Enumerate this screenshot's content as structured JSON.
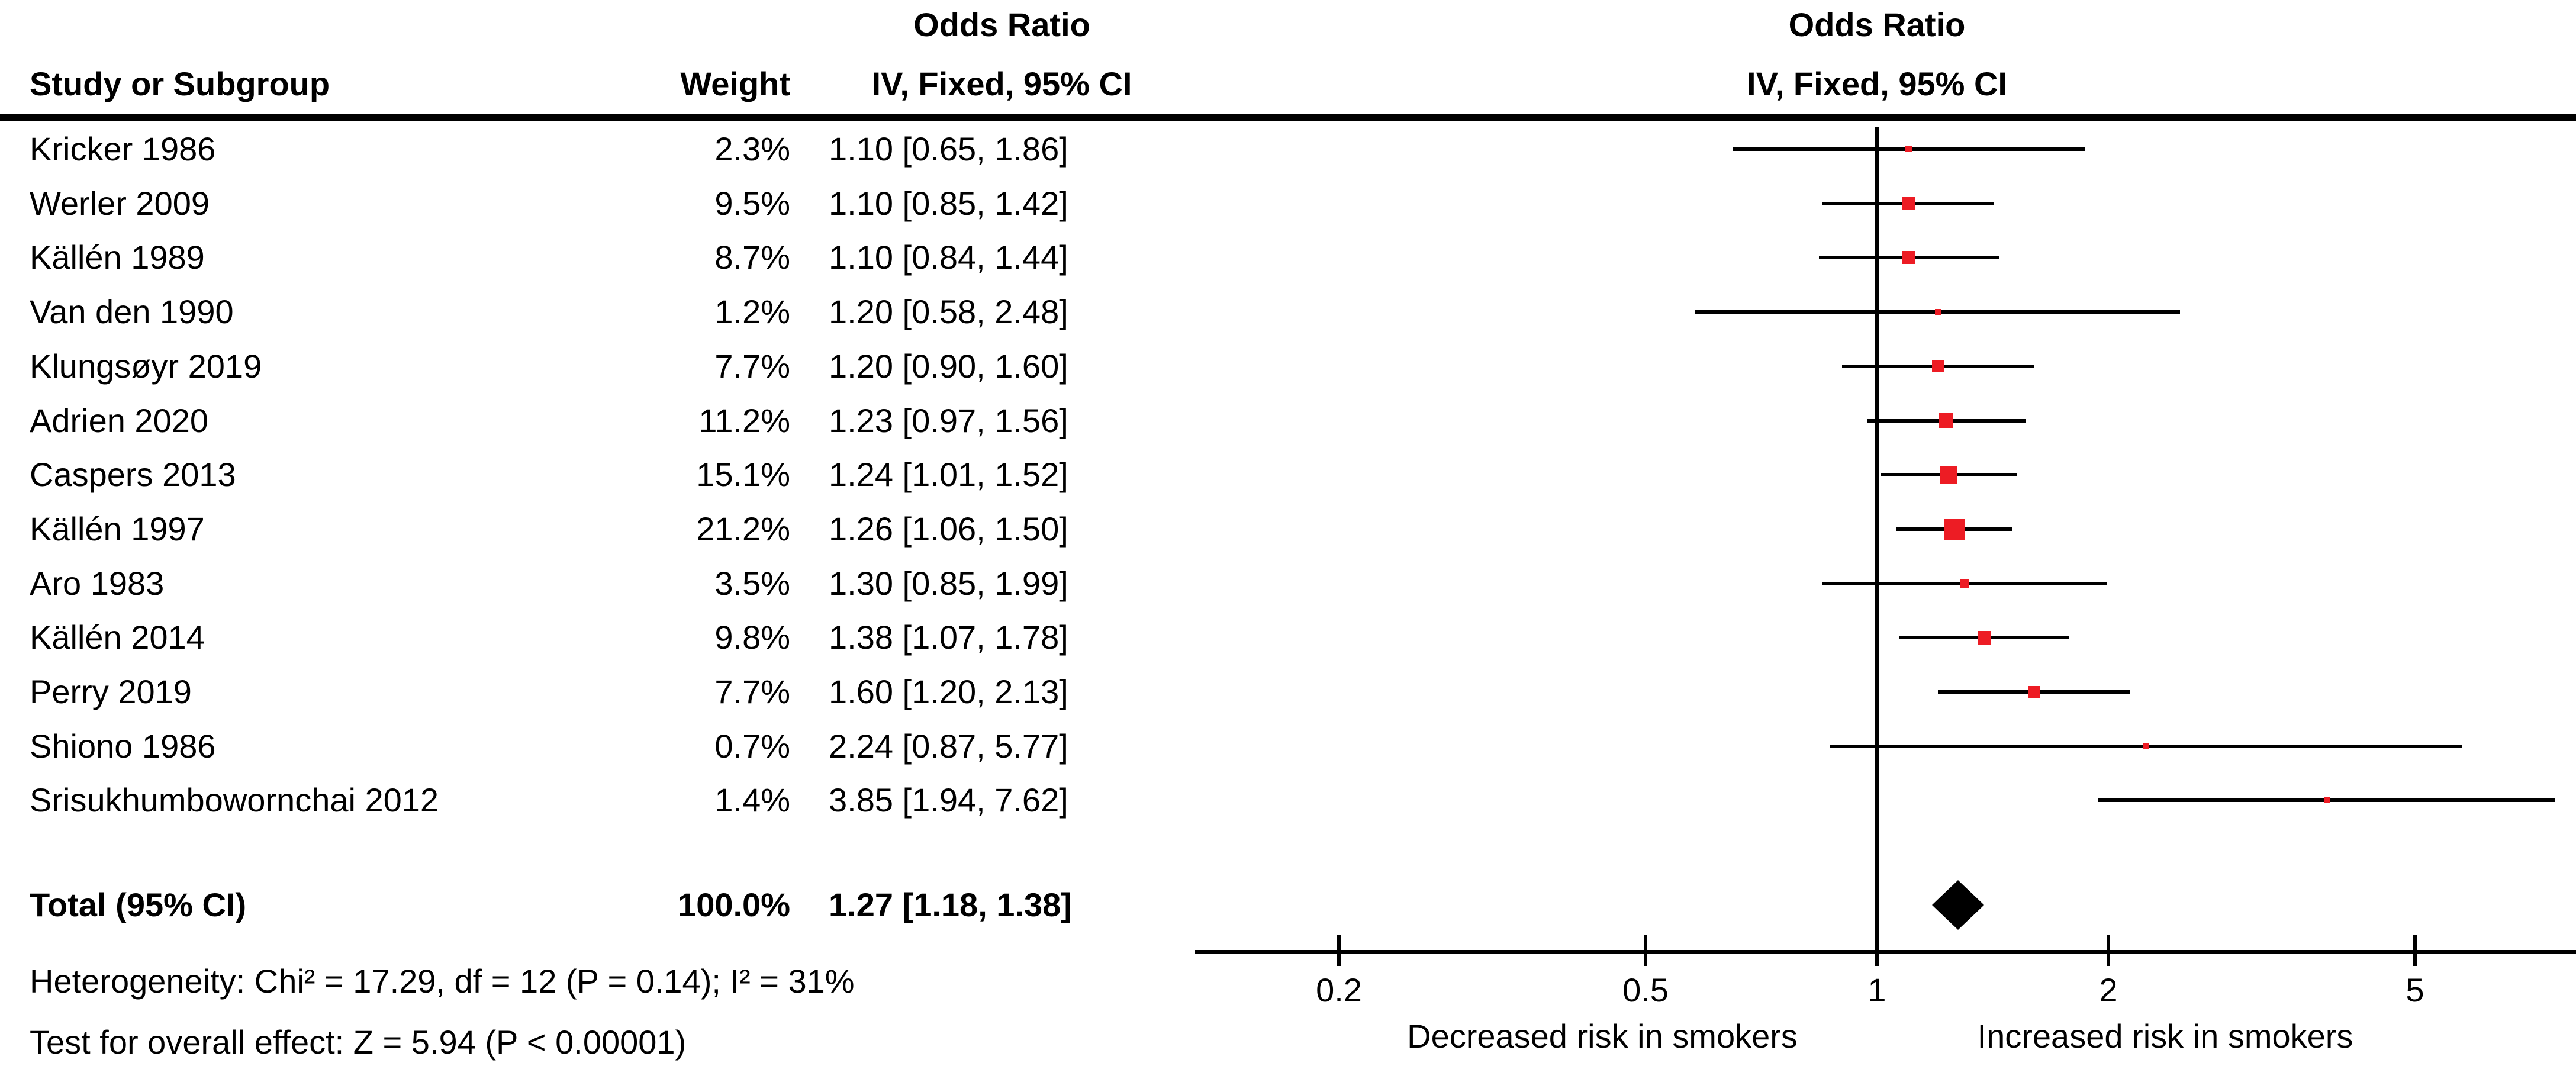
{
  "figure": {
    "columns": {
      "study": "Study or Subgroup",
      "weight": "Weight",
      "or_header": "Odds Ratio",
      "method_header": "IV, Fixed, 95% CI"
    },
    "plot_header": {
      "or_header": "Odds Ratio",
      "method_header": "IV, Fixed, 95% CI"
    }
  },
  "chart_data": {
    "type": "forest",
    "effect_measure": "Odds Ratio",
    "method": "IV, Fixed, 95% CI",
    "x_scale": "log10",
    "x_ticks": [
      0.2,
      0.5,
      1,
      2,
      5
    ],
    "x_tick_labels": [
      "0.2",
      "0.5",
      "1",
      "2",
      "5"
    ],
    "axis_labels": {
      "left": "Decreased risk in smokers",
      "right": "Increased risk in smokers"
    },
    "studies": [
      {
        "name": "Kricker 1986",
        "weight_pct": 2.3,
        "weight_label": "2.3%",
        "or": 1.1,
        "ci_low": 0.65,
        "ci_high": 1.86,
        "ci_label": "1.10 [0.65, 1.86]"
      },
      {
        "name": "Werler 2009",
        "weight_pct": 9.5,
        "weight_label": "9.5%",
        "or": 1.1,
        "ci_low": 0.85,
        "ci_high": 1.42,
        "ci_label": "1.10 [0.85, 1.42]"
      },
      {
        "name": "Källén 1989",
        "weight_pct": 8.7,
        "weight_label": "8.7%",
        "or": 1.1,
        "ci_low": 0.84,
        "ci_high": 1.44,
        "ci_label": "1.10 [0.84, 1.44]"
      },
      {
        "name": "Van den 1990",
        "weight_pct": 1.2,
        "weight_label": "1.2%",
        "or": 1.2,
        "ci_low": 0.58,
        "ci_high": 2.48,
        "ci_label": "1.20 [0.58, 2.48]"
      },
      {
        "name": "Klungsøyr 2019",
        "weight_pct": 7.7,
        "weight_label": "7.7%",
        "or": 1.2,
        "ci_low": 0.9,
        "ci_high": 1.6,
        "ci_label": "1.20 [0.90, 1.60]"
      },
      {
        "name": "Adrien 2020",
        "weight_pct": 11.2,
        "weight_label": "11.2%",
        "or": 1.23,
        "ci_low": 0.97,
        "ci_high": 1.56,
        "ci_label": "1.23 [0.97, 1.56]"
      },
      {
        "name": "Caspers 2013",
        "weight_pct": 15.1,
        "weight_label": "15.1%",
        "or": 1.24,
        "ci_low": 1.01,
        "ci_high": 1.52,
        "ci_label": "1.24 [1.01, 1.52]"
      },
      {
        "name": "Källén 1997",
        "weight_pct": 21.2,
        "weight_label": "21.2%",
        "or": 1.26,
        "ci_low": 1.06,
        "ci_high": 1.5,
        "ci_label": "1.26 [1.06, 1.50]"
      },
      {
        "name": "Aro 1983",
        "weight_pct": 3.5,
        "weight_label": "3.5%",
        "or": 1.3,
        "ci_low": 0.85,
        "ci_high": 1.99,
        "ci_label": "1.30 [0.85, 1.99]"
      },
      {
        "name": "Källén 2014",
        "weight_pct": 9.8,
        "weight_label": "9.8%",
        "or": 1.38,
        "ci_low": 1.07,
        "ci_high": 1.78,
        "ci_label": "1.38 [1.07, 1.78]"
      },
      {
        "name": "Perry 2019",
        "weight_pct": 7.7,
        "weight_label": "7.7%",
        "or": 1.6,
        "ci_low": 1.2,
        "ci_high": 2.13,
        "ci_label": "1.60 [1.20, 2.13]"
      },
      {
        "name": "Shiono 1986",
        "weight_pct": 0.7,
        "weight_label": "0.7%",
        "or": 2.24,
        "ci_low": 0.87,
        "ci_high": 5.77,
        "ci_label": "2.24 [0.87, 5.77]"
      },
      {
        "name": "Srisukhumbowornchai 2012",
        "weight_pct": 1.4,
        "weight_label": "1.4%",
        "or": 3.85,
        "ci_low": 1.94,
        "ci_high": 7.62,
        "ci_label": "3.85 [1.94, 7.62]"
      }
    ],
    "total": {
      "label": "Total (95% CI)",
      "weight_label": "100.0%",
      "or": 1.27,
      "ci_low": 1.18,
      "ci_high": 1.38,
      "ci_label": "1.27 [1.18, 1.38]"
    },
    "heterogeneity": "Heterogeneity: Chi² = 17.29, df = 12 (P = 0.14); I² = 31%",
    "overall_effect": "Test for overall effect: Z = 5.94 (P < 0.00001)",
    "colors": {
      "marker": "#ed1c24",
      "diamond": "#000000",
      "line": "#000000",
      "text": "#000000"
    }
  }
}
